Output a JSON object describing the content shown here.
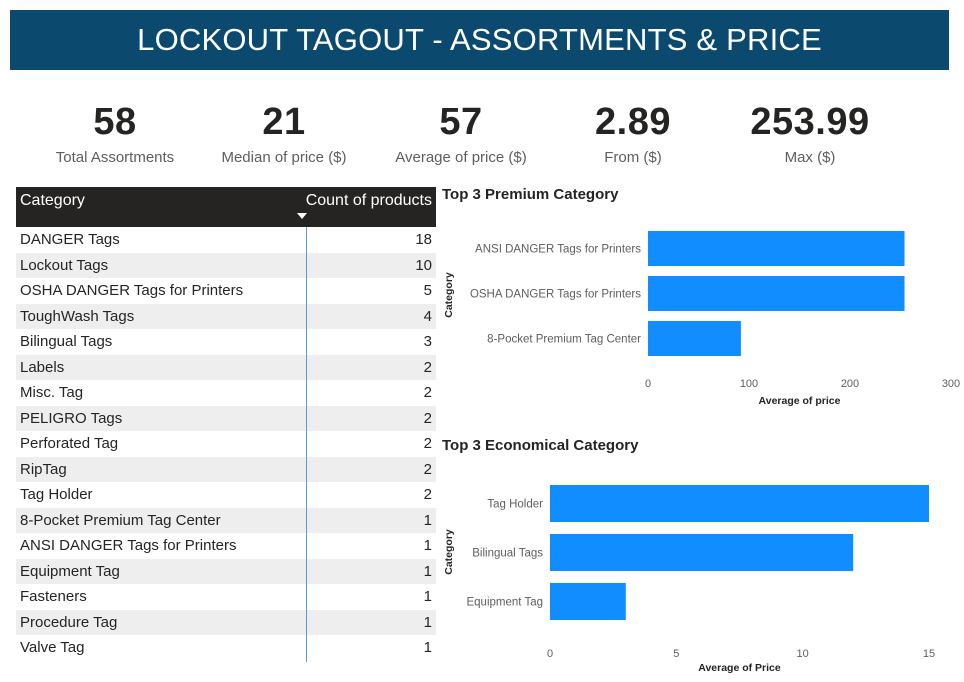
{
  "header": {
    "title": "LOCKOUT TAGOUT - ASSORTMENTS & PRICE"
  },
  "kpis": [
    {
      "value": "58",
      "label": "Total Assortments"
    },
    {
      "value": "21",
      "label": "Median of price ($)"
    },
    {
      "value": "57",
      "label": "Average of price ($)"
    },
    {
      "value": "2.89",
      "label": "From ($)"
    },
    {
      "value": "253.99",
      "label": "Max ($)"
    }
  ],
  "table": {
    "headers": {
      "category": "Category",
      "count": "Count of products"
    },
    "sort_icon": "sort-descending-icon",
    "rows": [
      {
        "category": "DANGER Tags",
        "count": "18"
      },
      {
        "category": "Lockout Tags",
        "count": "10"
      },
      {
        "category": "OSHA DANGER Tags for Printers",
        "count": "5"
      },
      {
        "category": "ToughWash Tags",
        "count": "4"
      },
      {
        "category": "Bilingual Tags",
        "count": "3"
      },
      {
        "category": "Labels",
        "count": "2"
      },
      {
        "category": "Misc. Tag",
        "count": "2"
      },
      {
        "category": "PELIGRO Tags",
        "count": "2"
      },
      {
        "category": "Perforated Tag",
        "count": "2"
      },
      {
        "category": "RipTag",
        "count": "2"
      },
      {
        "category": "Tag Holder",
        "count": "2"
      },
      {
        "category": "8-Pocket Premium Tag Center",
        "count": "1"
      },
      {
        "category": "ANSI DANGER Tags for Printers",
        "count": "1"
      },
      {
        "category": "Equipment Tag",
        "count": "1"
      },
      {
        "category": "Fasteners",
        "count": "1"
      },
      {
        "category": "Procedure Tag",
        "count": "1"
      },
      {
        "category": "Valve Tag",
        "count": "1"
      }
    ]
  },
  "colors": {
    "bar": "#118dff",
    "banner": "#0b4a6e",
    "table_header": "#252423"
  },
  "chart_data": [
    {
      "type": "bar",
      "orientation": "horizontal",
      "title": "Top 3 Premium Category",
      "categories": [
        "ANSI DANGER Tags for Printers",
        "OSHA DANGER Tags for Printers",
        "8-Pocket Premium Tag Center"
      ],
      "values": [
        253.99,
        253.99,
        92
      ],
      "xlabel": "Average of price",
      "ylabel": "Category",
      "xlim": [
        0,
        300
      ],
      "ticks": [
        0,
        100,
        200,
        300
      ],
      "grid": false
    },
    {
      "type": "bar",
      "orientation": "horizontal",
      "title": "Top 3 Economical Category",
      "categories": [
        "Tag Holder",
        "Bilingual Tags",
        "Equipment Tag"
      ],
      "values": [
        15,
        12,
        3
      ],
      "xlabel": "Average of Price",
      "ylabel": "Category",
      "xlim": [
        0,
        15
      ],
      "ticks": [
        0,
        5,
        10,
        15
      ],
      "grid": false
    }
  ]
}
